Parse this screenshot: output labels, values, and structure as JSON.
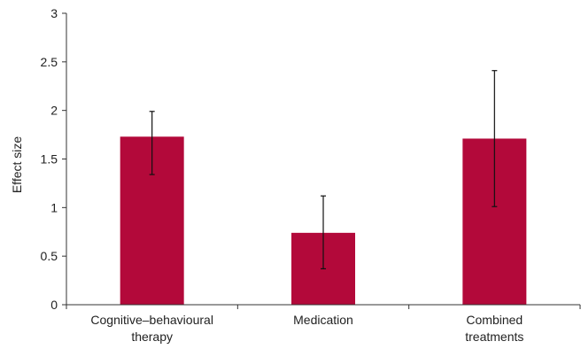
{
  "chart_data": {
    "type": "bar",
    "title": "",
    "xlabel": "",
    "ylabel": "Effect size",
    "ylim": [
      0,
      3
    ],
    "yticks": [
      "0",
      "0.5",
      "1",
      "1.5",
      "2",
      "2.5",
      "3"
    ],
    "categories": [
      [
        "Cognitive–behavioural",
        "therapy"
      ],
      [
        "Medication"
      ],
      [
        "Combined",
        "treatments"
      ]
    ],
    "values": [
      1.73,
      0.74,
      1.71
    ],
    "error_low": [
      1.34,
      0.37,
      1.01
    ],
    "error_high": [
      1.99,
      1.12,
      2.41
    ],
    "bar_color": "#b3093a",
    "grid": false,
    "legend": "none"
  }
}
